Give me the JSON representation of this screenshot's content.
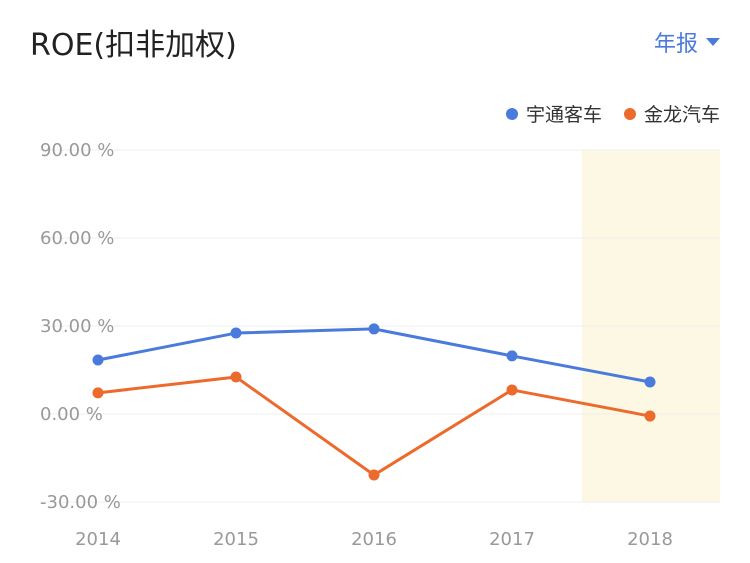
{
  "header": {
    "title": "ROE(扣非加权)",
    "period_label": "年报"
  },
  "chart_data": {
    "type": "line",
    "categories": [
      "2014",
      "2015",
      "2016",
      "2017",
      "2018"
    ],
    "series": [
      {
        "name": "宇通客车",
        "color": "#4a7bdc",
        "values": [
          18.4,
          27.6,
          29.0,
          19.8,
          10.9
        ]
      },
      {
        "name": "金龙汽车",
        "color": "#ec6a2c",
        "values": [
          7.2,
          12.6,
          -20.8,
          8.2,
          -0.7
        ]
      }
    ],
    "yticks": [
      90,
      60,
      30,
      0,
      -30
    ],
    "ytick_labels": [
      "90.00 %",
      "60.00 %",
      "30.00 %",
      "0.00 %",
      "-30.00 %"
    ],
    "ylim": [
      -30,
      90
    ],
    "highlight_category": "2018",
    "highlight_color": "#fdf8e4",
    "grid": true,
    "legend": "top-right"
  }
}
